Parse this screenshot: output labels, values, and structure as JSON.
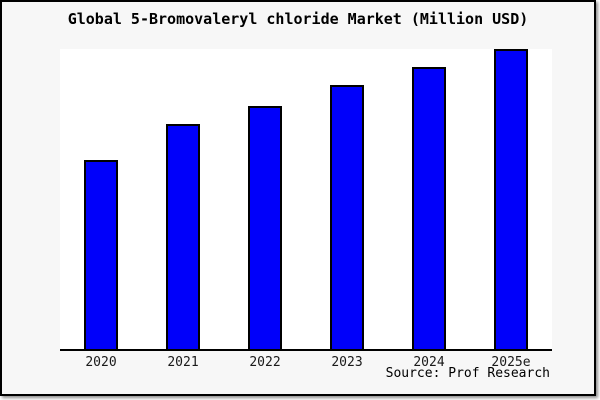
{
  "title": "Global 5-Bromovaleryl chloride Market (Million USD)",
  "source": "Source: Prof Research",
  "colors": {
    "bar_fill": "#0000fa",
    "bar_border": "#000000",
    "canvas_background": "#f7f7f7",
    "plot_background": "#ffffff",
    "axis": "#000000",
    "title_text": "#000000"
  },
  "chart_data": {
    "type": "bar",
    "categories": [
      "2020",
      "2021",
      "2022",
      "2023",
      "2024",
      "2025e"
    ],
    "values": [
      63,
      75,
      81,
      88,
      94,
      100
    ],
    "title": "Global 5-Bromovaleryl chloride Market (Million USD)",
    "xlabel": "",
    "ylabel": "",
    "ylim": [
      0,
      100
    ],
    "grid": false,
    "legend": null,
    "y_axis_ticks_visible": false,
    "source": "Source: Prof Research"
  }
}
